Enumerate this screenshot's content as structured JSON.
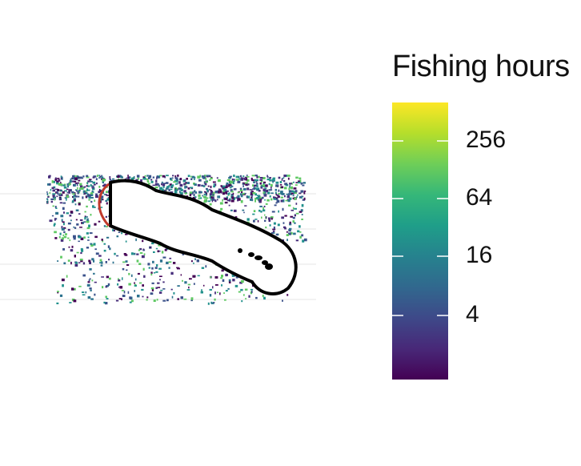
{
  "legend": {
    "title": "Fishing hours",
    "scale": "log",
    "labels": [
      "256",
      "64",
      "16",
      "4"
    ],
    "colors": [
      "#fde725",
      "#b5de2b",
      "#6ece58",
      "#35b779",
      "#1f9e89",
      "#26828e",
      "#31688e",
      "#3e4989",
      "#482878",
      "#440154"
    ]
  },
  "map": {
    "fishing_colors": [
      "#440154",
      "#3b528b",
      "#21918c",
      "#5ec962",
      "#2c728e",
      "#472d7b"
    ],
    "boundary_color": "#000000",
    "edge_highlight_color": "#c0392b",
    "gridline_color": "#e5e5e5"
  }
}
